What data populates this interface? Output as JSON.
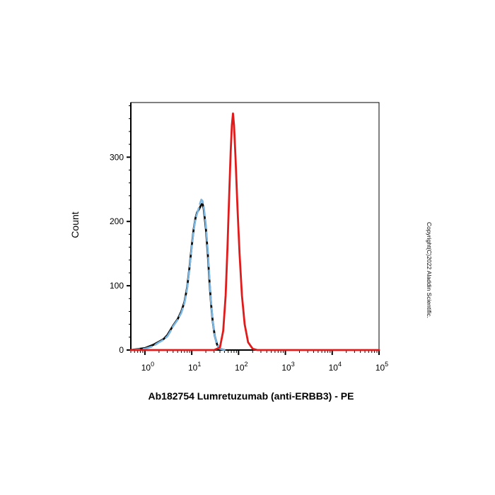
{
  "chart_data": {
    "type": "line",
    "xscale": "log",
    "xlabel": "Ab182754 Lumretuzumab (anti-ERBB3) - PE",
    "ylabel": "Count",
    "xlim": [
      0.5,
      100000
    ],
    "ylim": [
      0,
      385
    ],
    "x_ticks": [
      {
        "value": 1,
        "base": "10",
        "exp": "0"
      },
      {
        "value": 10,
        "base": "10",
        "exp": "1"
      },
      {
        "value": 100,
        "base": "10",
        "exp": "2"
      },
      {
        "value": 1000,
        "base": "10",
        "exp": "3"
      },
      {
        "value": 10000,
        "base": "10",
        "exp": "4"
      },
      {
        "value": 100000,
        "base": "10",
        "exp": "5"
      }
    ],
    "y_ticks": [
      0,
      100,
      200,
      300
    ],
    "grid": false,
    "series": [
      {
        "color": "#0a0a0a",
        "style": "solid",
        "points": [
          [
            0.5,
            0
          ],
          [
            1.0,
            3
          ],
          [
            1.5,
            8
          ],
          [
            2.0,
            13
          ],
          [
            2.5,
            17
          ],
          [
            3.0,
            23
          ],
          [
            3.5,
            31
          ],
          [
            4.0,
            38
          ],
          [
            5.0,
            48
          ],
          [
            6.0,
            60
          ],
          [
            7.0,
            75
          ],
          [
            8.0,
            98
          ],
          [
            9.0,
            130
          ],
          [
            10.0,
            162
          ],
          [
            11.0,
            188
          ],
          [
            12.0,
            205
          ],
          [
            13.0,
            214
          ],
          [
            14.0,
            218
          ],
          [
            15.0,
            222
          ],
          [
            16.0,
            226
          ],
          [
            17.0,
            228
          ],
          [
            18.0,
            220
          ],
          [
            20.0,
            190
          ],
          [
            22.0,
            150
          ],
          [
            24.0,
            105
          ],
          [
            26.0,
            70
          ],
          [
            28.0,
            45
          ],
          [
            31.0,
            22
          ],
          [
            35.0,
            8
          ],
          [
            40.0,
            2
          ],
          [
            50.0,
            0
          ]
        ]
      },
      {
        "color": "#7bb6e0",
        "style": "dashed",
        "points": [
          [
            0.5,
            0
          ],
          [
            1.0,
            2
          ],
          [
            1.5,
            6
          ],
          [
            2.0,
            12
          ],
          [
            2.5,
            16
          ],
          [
            3.0,
            21
          ],
          [
            3.5,
            29
          ],
          [
            4.0,
            37
          ],
          [
            5.0,
            47
          ],
          [
            6.0,
            58
          ],
          [
            7.0,
            73
          ],
          [
            8.0,
            96
          ],
          [
            9.0,
            128
          ],
          [
            10.0,
            160
          ],
          [
            11.0,
            186
          ],
          [
            12.0,
            204
          ],
          [
            13.0,
            212
          ],
          [
            14.0,
            220
          ],
          [
            15.0,
            228
          ],
          [
            16.0,
            234
          ],
          [
            17.0,
            232
          ],
          [
            18.0,
            224
          ],
          [
            20.0,
            195
          ],
          [
            22.0,
            155
          ],
          [
            24.0,
            110
          ],
          [
            26.0,
            72
          ],
          [
            28.0,
            46
          ],
          [
            31.0,
            22
          ],
          [
            35.0,
            8
          ],
          [
            40.0,
            2
          ],
          [
            50.0,
            0
          ]
        ]
      },
      {
        "color": "#e01b1b",
        "style": "solid",
        "points": [
          [
            0.5,
            0
          ],
          [
            30,
            0
          ],
          [
            40,
            4
          ],
          [
            47,
            30
          ],
          [
            53,
            85
          ],
          [
            58,
            160
          ],
          [
            63,
            240
          ],
          [
            68,
            310
          ],
          [
            72,
            350
          ],
          [
            76,
            368
          ],
          [
            80,
            350
          ],
          [
            86,
            300
          ],
          [
            95,
            220
          ],
          [
            105,
            150
          ],
          [
            118,
            85
          ],
          [
            135,
            40
          ],
          [
            160,
            12
          ],
          [
            200,
            2
          ],
          [
            250,
            0
          ],
          [
            100000,
            0
          ]
        ]
      }
    ]
  },
  "watermark": "Copyright(C)2022 Aladdin Scientific."
}
